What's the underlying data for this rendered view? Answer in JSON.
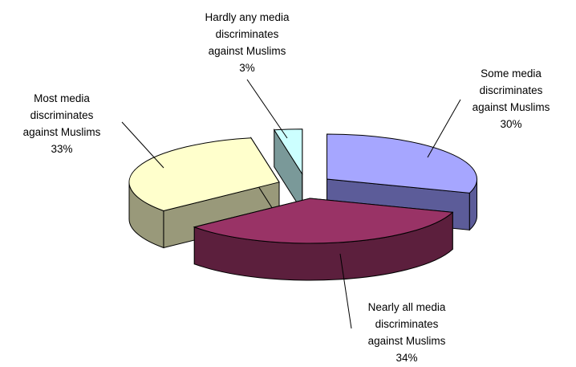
{
  "chart_data": {
    "type": "pie",
    "title": "",
    "style": "3D exploded pie",
    "legend": "none",
    "slices": [
      {
        "label_lines": [
          "Some media",
          "discriminates",
          "against Muslims"
        ],
        "value": 30,
        "value_label": "30%",
        "color": "#a6a6ff",
        "side_color": "#5c5c99"
      },
      {
        "label_lines": [
          "Nearly all media",
          "discriminates",
          "against Muslims"
        ],
        "value": 34,
        "value_label": "34%",
        "color": "#993366",
        "side_color": "#5c1f3d"
      },
      {
        "label_lines": [
          "Most media",
          "discriminates",
          "against Muslims"
        ],
        "value": 33,
        "value_label": "33%",
        "color": "#ffffcc",
        "side_color": "#99997a"
      },
      {
        "label_lines": [
          "Hardly any media",
          "discriminates",
          "against Muslims"
        ],
        "value": 3,
        "value_label": "3%",
        "color": "#ccffff",
        "side_color": "#7a9999"
      }
    ]
  }
}
